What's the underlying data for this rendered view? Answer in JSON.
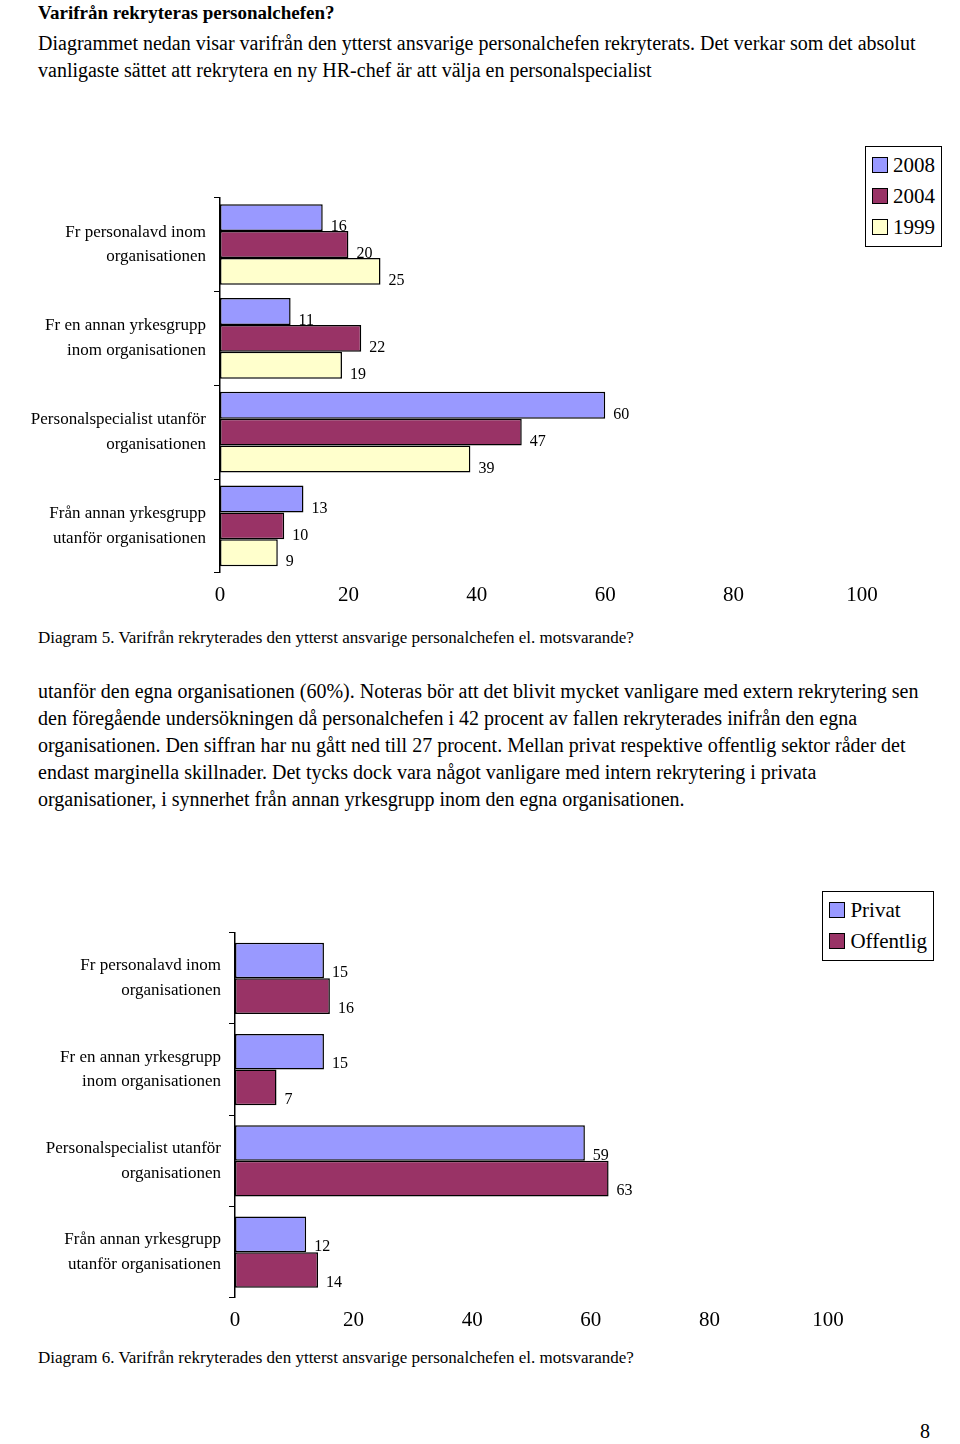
{
  "header": {
    "title": "Varifrån rekryteras personalchefen?"
  },
  "paragraphs": [
    "Diagrammet nedan visar varifrån den ytterst ansvarige personalchefen rekryterats. Det verkar som det absolut vanligaste sättet att rekrytera en ny HR-chef är att välja en personalspecialist",
    "utanför den egna organisationen (60%). Noteras bör att det blivit mycket vanligare med extern rekrytering sen den föregående undersökningen då personalchefen i 42 procent av fallen rekryterades inifrån den egna organisationen. Den siffran har nu gått ned till 27 procent. Mellan privat respektive offentlig sektor råder det endast marginella skillnader. Det tycks dock vara något vanligare med intern rekrytering i privata organisationer, i synnerhet från annan yrkesgrupp inom den egna organisationen."
  ],
  "chart_data": [
    {
      "type": "bar",
      "orientation": "horizontal",
      "caption": "Diagram 5. Varifrån rekryterades den ytterst ansvarige personalchefen el. motsvarande?",
      "categories": [
        [
          "Fr personalavd inom",
          "organisationen"
        ],
        [
          "Fr en annan yrkesgrupp",
          "inom organisationen"
        ],
        [
          "Personalspecialist utanför",
          "organisationen"
        ],
        [
          "Från annan yrkesgrupp",
          "utanför organisationen"
        ]
      ],
      "series": [
        {
          "name": "2008",
          "color": "#9999ff",
          "values": [
            16,
            11,
            60,
            13
          ]
        },
        {
          "name": "2004",
          "color": "#993366",
          "values": [
            20,
            22,
            47,
            10
          ]
        },
        {
          "name": "1999",
          "color": "#ffffcc",
          "values": [
            25,
            19,
            39,
            9
          ]
        }
      ],
      "xlim": [
        0,
        100
      ],
      "xticks": [
        0,
        20,
        40,
        60,
        80,
        100
      ],
      "grid": false,
      "data_labels": true,
      "legend": "upper right"
    },
    {
      "type": "bar",
      "orientation": "horizontal",
      "caption": "Diagram 6. Varifrån rekryterades den ytterst ansvarige personalchefen el. motsvarande?",
      "categories": [
        [
          "Fr personalavd inom",
          "organisationen"
        ],
        [
          "Fr en annan yrkesgrupp",
          "inom organisationen"
        ],
        [
          "Personalspecialist utanför",
          "organisationen"
        ],
        [
          "Från annan yrkesgrupp",
          "utanför organisationen"
        ]
      ],
      "series": [
        {
          "name": "Privat",
          "color": "#9999ff",
          "values": [
            15,
            15,
            59,
            12
          ]
        },
        {
          "name": "Offentlig",
          "color": "#993366",
          "values": [
            16,
            7,
            63,
            14
          ]
        }
      ],
      "xlim": [
        0,
        100
      ],
      "xticks": [
        0,
        20,
        40,
        60,
        80,
        100
      ],
      "grid": false,
      "data_labels": true,
      "legend": "upper right"
    }
  ],
  "page_number": 8
}
